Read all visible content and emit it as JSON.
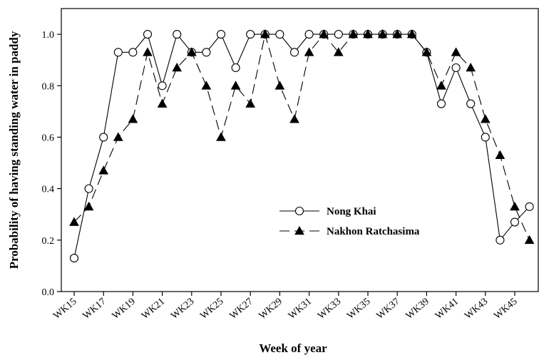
{
  "chart_data": {
    "type": "line",
    "xlabel": "Week of year",
    "ylabel": "Probability of having standing water in paddy",
    "ylim": [
      0.0,
      1.1
    ],
    "yticks": [
      0.0,
      0.2,
      0.4,
      0.6,
      0.8,
      1.0
    ],
    "ytick_labels": [
      "0.0",
      "0.2",
      "0.4",
      "0.6",
      "0.8",
      "1.0"
    ],
    "x": [
      "WK15",
      "WK16",
      "WK17",
      "WK18",
      "WK19",
      "WK20",
      "WK21",
      "WK22",
      "WK23",
      "WK24",
      "WK25",
      "WK26",
      "WK27",
      "WK28",
      "WK29",
      "WK30",
      "WK31",
      "WK32",
      "WK33",
      "WK34",
      "WK35",
      "WK36",
      "WK37",
      "WK38",
      "WK39",
      "WK40",
      "WK41",
      "WK42",
      "WK43",
      "WK44",
      "WK45",
      "WK46"
    ],
    "xtick_labels": [
      "WK15",
      "WK17",
      "WK19",
      "WK21",
      "WK23",
      "WK25",
      "WK27",
      "WK29",
      "WK31",
      "WK33",
      "WK35",
      "WK37",
      "WK39",
      "WK41",
      "WK43",
      "WK45"
    ],
    "grid": false,
    "legend_position": "center-right",
    "series": [
      {
        "name": "Nong Khai",
        "marker": "open-circle",
        "line": "solid",
        "values": [
          0.13,
          0.4,
          0.6,
          0.93,
          0.93,
          1.0,
          0.8,
          1.0,
          0.93,
          0.93,
          1.0,
          0.87,
          1.0,
          1.0,
          1.0,
          0.93,
          1.0,
          1.0,
          1.0,
          1.0,
          1.0,
          1.0,
          1.0,
          1.0,
          0.93,
          0.73,
          0.87,
          0.73,
          0.6,
          0.2,
          0.27,
          0.33
        ]
      },
      {
        "name": "Nakhon Ratchasima",
        "marker": "filled-triangle",
        "line": "dashed",
        "values": [
          0.27,
          0.33,
          0.47,
          0.6,
          0.67,
          0.93,
          0.73,
          0.87,
          0.93,
          0.8,
          0.6,
          0.8,
          0.73,
          1.0,
          0.8,
          0.67,
          0.93,
          1.0,
          0.93,
          1.0,
          1.0,
          1.0,
          1.0,
          1.0,
          0.93,
          0.8,
          0.93,
          0.87,
          0.67,
          0.53,
          0.33,
          0.2
        ]
      }
    ]
  }
}
